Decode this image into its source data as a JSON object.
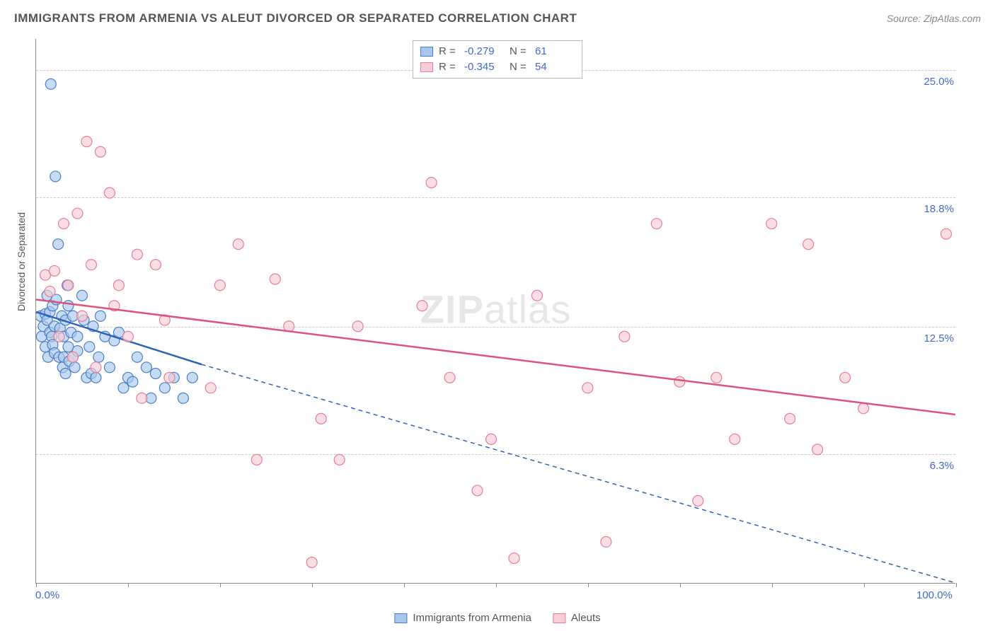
{
  "title": "IMMIGRANTS FROM ARMENIA VS ALEUT DIVORCED OR SEPARATED CORRELATION CHART",
  "source_label": "Source: ZipAtlas.com",
  "watermark": {
    "bold": "ZIP",
    "rest": "atlas"
  },
  "y_axis_label": "Divorced or Separated",
  "chart": {
    "type": "scatter",
    "xlim": [
      0,
      100
    ],
    "ylim": [
      0,
      26.5
    ],
    "x_ticks_pct": [
      0,
      10,
      20,
      30,
      40,
      50,
      60,
      70,
      80,
      90,
      100
    ],
    "x_tick_labels": {
      "0": "0.0%",
      "100": "100.0%"
    },
    "y_gridlines": [
      6.3,
      12.5,
      18.8,
      25.0
    ],
    "y_tick_labels": [
      "6.3%",
      "12.5%",
      "18.8%",
      "25.0%"
    ],
    "background_color": "#ffffff",
    "grid_color": "#cccccc",
    "axis_color": "#888888",
    "tick_label_color": "#4169c9",
    "marker_radius": 7.5,
    "marker_stroke_width": 1.2,
    "trend_line_width": 2.5,
    "trend_dash": "6,5"
  },
  "series": [
    {
      "key": "armenia",
      "label": "Immigrants from Armenia",
      "fill": "#a9c7ec",
      "stroke": "#4a7fc7",
      "line_color": "#2e63b8",
      "R": "-0.279",
      "N": "61",
      "trend": {
        "x1": 0,
        "y1": 13.2,
        "x2": 100,
        "y2": -1.0,
        "solid_until_x": 18
      },
      "points": [
        [
          0.5,
          13.0
        ],
        [
          0.6,
          12.0
        ],
        [
          0.8,
          12.5
        ],
        [
          1.0,
          13.1
        ],
        [
          1.0,
          11.5
        ],
        [
          1.2,
          12.8
        ],
        [
          1.2,
          14.0
        ],
        [
          1.3,
          11.0
        ],
        [
          1.5,
          13.2
        ],
        [
          1.5,
          12.2
        ],
        [
          1.6,
          24.3
        ],
        [
          1.7,
          12.0
        ],
        [
          1.8,
          11.6
        ],
        [
          1.8,
          13.5
        ],
        [
          2.0,
          12.5
        ],
        [
          2.0,
          11.2
        ],
        [
          2.1,
          19.8
        ],
        [
          2.2,
          13.8
        ],
        [
          2.4,
          16.5
        ],
        [
          2.5,
          11.0
        ],
        [
          2.6,
          12.4
        ],
        [
          2.8,
          13.0
        ],
        [
          2.9,
          10.5
        ],
        [
          3.0,
          12.0
        ],
        [
          3.0,
          11.0
        ],
        [
          3.2,
          10.2
        ],
        [
          3.2,
          12.8
        ],
        [
          3.4,
          14.5
        ],
        [
          3.5,
          13.5
        ],
        [
          3.5,
          11.5
        ],
        [
          3.6,
          10.8
        ],
        [
          3.8,
          12.2
        ],
        [
          4.0,
          13.0
        ],
        [
          4.0,
          11.0
        ],
        [
          4.2,
          10.5
        ],
        [
          4.5,
          12.0
        ],
        [
          4.5,
          11.3
        ],
        [
          5.0,
          14.0
        ],
        [
          5.2,
          12.8
        ],
        [
          5.5,
          10.0
        ],
        [
          5.8,
          11.5
        ],
        [
          6.0,
          10.2
        ],
        [
          6.2,
          12.5
        ],
        [
          6.5,
          10.0
        ],
        [
          6.8,
          11.0
        ],
        [
          7.0,
          13.0
        ],
        [
          7.5,
          12.0
        ],
        [
          8.0,
          10.5
        ],
        [
          8.5,
          11.8
        ],
        [
          9.0,
          12.2
        ],
        [
          9.5,
          9.5
        ],
        [
          10.0,
          10.0
        ],
        [
          10.5,
          9.8
        ],
        [
          11.0,
          11.0
        ],
        [
          12.0,
          10.5
        ],
        [
          12.5,
          9.0
        ],
        [
          13.0,
          10.2
        ],
        [
          14.0,
          9.5
        ],
        [
          15.0,
          10.0
        ],
        [
          16.0,
          9.0
        ],
        [
          17.0,
          10.0
        ]
      ]
    },
    {
      "key": "aleuts",
      "label": "Aleuts",
      "fill": "#f7cdd7",
      "stroke": "#e77d97",
      "line_color": "#e0527a",
      "R": "-0.345",
      "N": "54",
      "trend": {
        "x1": 0,
        "y1": 13.8,
        "x2": 100,
        "y2": 8.2,
        "solid_until_x": 100
      },
      "points": [
        [
          1.0,
          15.0
        ],
        [
          1.5,
          14.2
        ],
        [
          2.0,
          15.2
        ],
        [
          2.5,
          12.0
        ],
        [
          3.0,
          17.5
        ],
        [
          3.5,
          14.5
        ],
        [
          4.0,
          11.0
        ],
        [
          4.5,
          18.0
        ],
        [
          5.0,
          13.0
        ],
        [
          5.5,
          21.5
        ],
        [
          6.0,
          15.5
        ],
        [
          6.5,
          10.5
        ],
        [
          7.0,
          21.0
        ],
        [
          8.0,
          19.0
        ],
        [
          8.5,
          13.5
        ],
        [
          9.0,
          14.5
        ],
        [
          10.0,
          12.0
        ],
        [
          11.0,
          16.0
        ],
        [
          11.5,
          9.0
        ],
        [
          13.0,
          15.5
        ],
        [
          14.0,
          12.8
        ],
        [
          14.5,
          10.0
        ],
        [
          19.0,
          9.5
        ],
        [
          20.0,
          14.5
        ],
        [
          22.0,
          16.5
        ],
        [
          24.0,
          6.0
        ],
        [
          26.0,
          14.8
        ],
        [
          27.5,
          12.5
        ],
        [
          30.0,
          1.0
        ],
        [
          31.0,
          8.0
        ],
        [
          33.0,
          6.0
        ],
        [
          35.0,
          12.5
        ],
        [
          42.0,
          13.5
        ],
        [
          43.0,
          19.5
        ],
        [
          45.0,
          10.0
        ],
        [
          48.0,
          4.5
        ],
        [
          49.5,
          7.0
        ],
        [
          52.0,
          1.2
        ],
        [
          54.5,
          14.0
        ],
        [
          60.0,
          9.5
        ],
        [
          62.0,
          2.0
        ],
        [
          64.0,
          12.0
        ],
        [
          67.5,
          17.5
        ],
        [
          70.0,
          9.8
        ],
        [
          72.0,
          4.0
        ],
        [
          74.0,
          10.0
        ],
        [
          76.0,
          7.0
        ],
        [
          80.0,
          17.5
        ],
        [
          82.0,
          8.0
        ],
        [
          84.0,
          16.5
        ],
        [
          85.0,
          6.5
        ],
        [
          88.0,
          10.0
        ],
        [
          90.0,
          8.5
        ],
        [
          99.0,
          17.0
        ]
      ]
    }
  ],
  "legend_top_labels": {
    "R": "R =",
    "N": "N ="
  },
  "legend_bottom": [
    {
      "series": "armenia"
    },
    {
      "series": "aleuts"
    }
  ]
}
